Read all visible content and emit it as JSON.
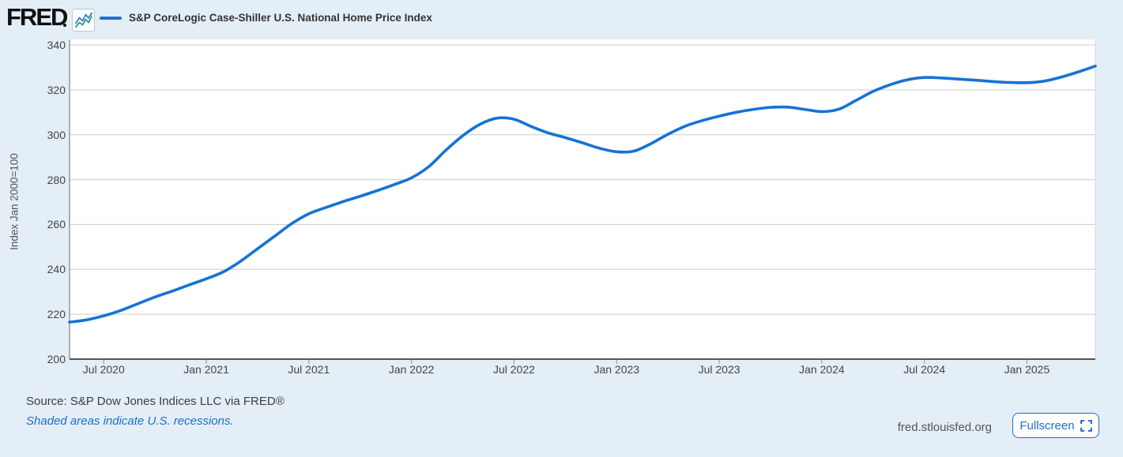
{
  "header": {
    "logo_text": "FRED",
    "logo_icon": "fred-sparkline-icon"
  },
  "chart_data": {
    "type": "line",
    "title": "S&P CoreLogic Case-Shiller U.S. National Home Price Index",
    "ylabel": "Index Jan 2000=100",
    "ylim": [
      200,
      340
    ],
    "yticks": [
      200,
      220,
      240,
      260,
      280,
      300,
      320,
      340
    ],
    "grid": true,
    "legend_position": "top-left",
    "x_range": {
      "start": "May 2020",
      "end": "May 2025",
      "frequency": "monthly"
    },
    "xticks": [
      {
        "label": "Jul 2020",
        "month_index": 2
      },
      {
        "label": "Jan 2021",
        "month_index": 8
      },
      {
        "label": "Jul 2021",
        "month_index": 14
      },
      {
        "label": "Jan 2022",
        "month_index": 20
      },
      {
        "label": "Jul 2022",
        "month_index": 26
      },
      {
        "label": "Jan 2023",
        "month_index": 32
      },
      {
        "label": "Jul 2023",
        "month_index": 38
      },
      {
        "label": "Jan 2024",
        "month_index": 44
      },
      {
        "label": "Jul 2024",
        "month_index": 50
      },
      {
        "label": "Jan 2025",
        "month_index": 56
      }
    ],
    "series": [
      {
        "name": "S&P CoreLogic Case-Shiller U.S. National Home Price Index",
        "color": "#1672d6",
        "values": [
          216.5,
          217.5,
          219.3,
          221.7,
          224.7,
          227.7,
          230.3,
          233.1,
          235.8,
          238.9,
          243.6,
          249.2,
          254.8,
          260.4,
          264.8,
          267.6,
          270.2,
          272.6,
          275.1,
          277.8,
          280.8,
          285.7,
          293.0,
          299.6,
          304.6,
          307.4,
          306.9,
          303.7,
          300.8,
          298.7,
          296.4,
          294.0,
          292.4,
          292.7,
          296.0,
          300.2,
          303.8,
          306.3,
          308.3,
          310.0,
          311.3,
          312.2,
          312.3,
          311.3,
          310.3,
          311.4,
          315.3,
          319.3,
          322.3,
          324.5,
          325.5,
          325.3,
          324.8,
          324.3,
          323.7,
          323.3,
          323.2,
          323.9,
          325.7,
          328.0,
          330.6
        ]
      }
    ]
  },
  "footer": {
    "source_text": "Source: S&P Dow Jones Indices LLC via FRED®",
    "recession_note": "Shaded areas indicate U.S. recessions.",
    "site_url": "fred.stlouisfed.org",
    "fullscreen_label": "Fullscreen"
  },
  "colors": {
    "page_background": "#e4eef7",
    "plot_background": "#ffffff",
    "line_blue": "#1672d6",
    "link_blue": "#1b6ec8",
    "gridline": "#cccccc",
    "axis_line": "#555555",
    "tick_text": "#444444",
    "logo_black": "#101010",
    "icon_blue": "#2f7ed8",
    "icon_teal": "#2aa07a"
  }
}
